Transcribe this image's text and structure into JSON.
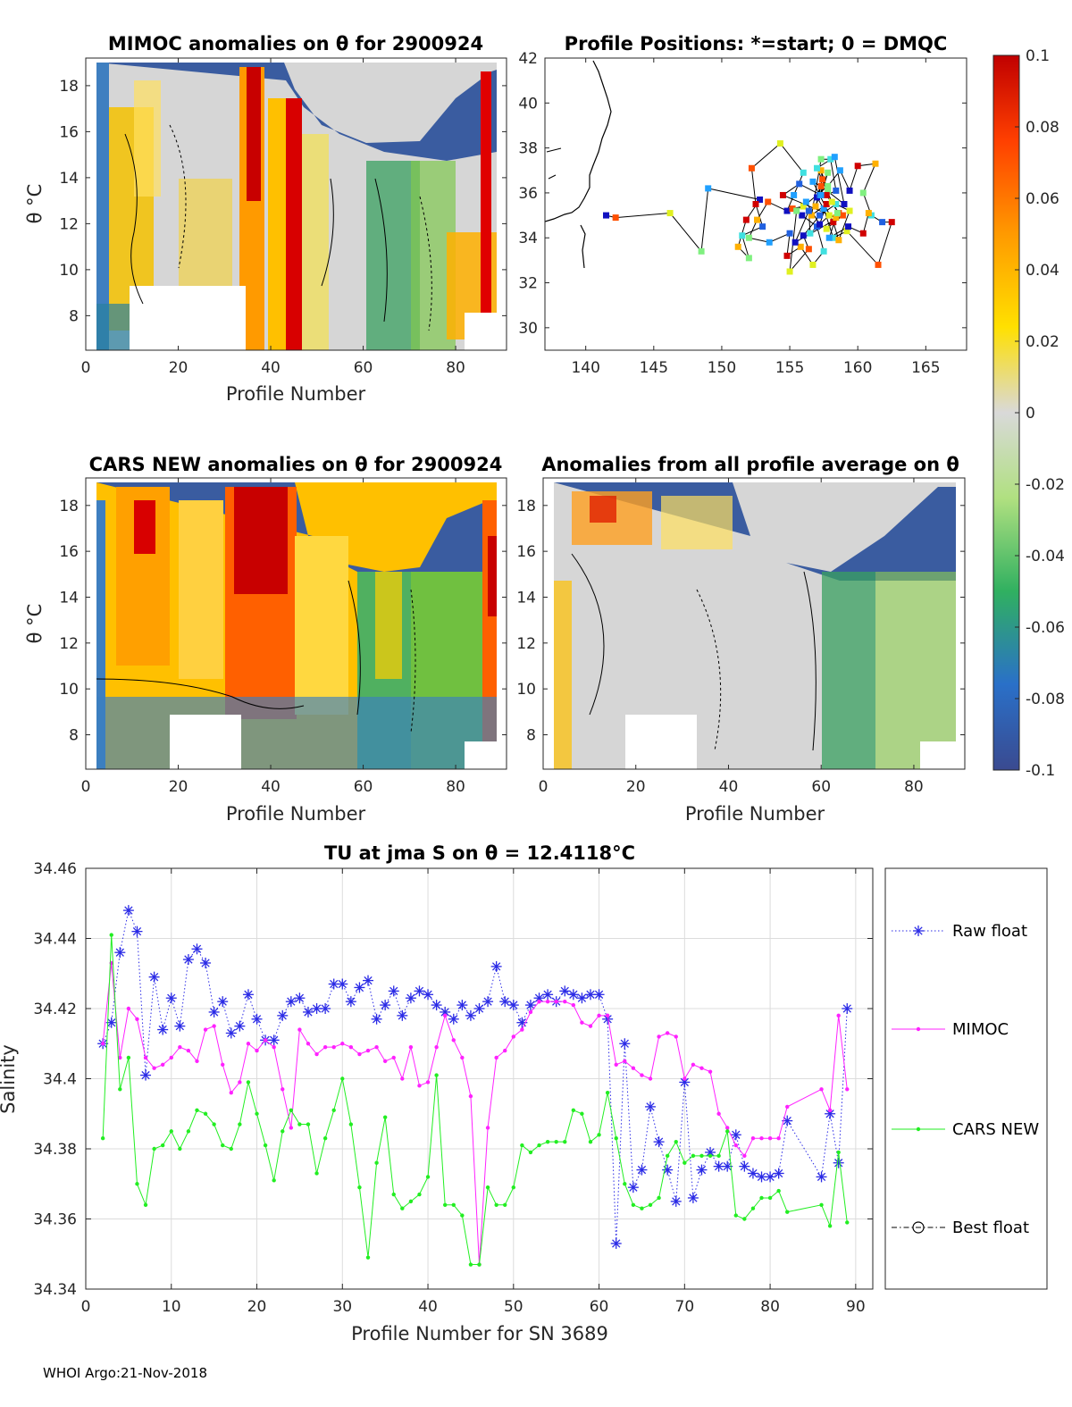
{
  "footer": "WHOI Argo:21-Nov-2018",
  "colors": {
    "raw_float": "#2b2be6",
    "mimoc": "#ff22ff",
    "cars_new": "#22ee22",
    "grid": "#dcdcdc",
    "land": "#000000"
  },
  "colorbar": {
    "tick_labels": [
      "0.1",
      "0.08",
      "0.06",
      "0.04",
      "0.02",
      "0",
      "-0.02",
      "-0.04",
      "-0.06",
      "-0.08",
      "-0.1"
    ],
    "range": [
      -0.1,
      0.1
    ]
  },
  "panels": [
    {
      "id": "mimoc",
      "title": "MIMOC anomalies on θ  for 2900924",
      "xlabel": "Profile Number",
      "ylabel": "θ °C",
      "xlim": [
        0,
        91
      ],
      "ylim": [
        6.5,
        19.2
      ],
      "xticks": [
        "0",
        "20",
        "40",
        "60",
        "80"
      ],
      "yticks": [
        "8",
        "10",
        "12",
        "14",
        "16",
        "18"
      ]
    },
    {
      "id": "cars",
      "title": "CARS NEW anomalies on θ for 2900924",
      "xlabel": "Profile Number",
      "ylabel": "θ °C",
      "xlim": [
        0,
        91
      ],
      "ylim": [
        6.5,
        19.2
      ],
      "xticks": [
        "0",
        "20",
        "40",
        "60",
        "80"
      ],
      "yticks": [
        "8",
        "10",
        "12",
        "14",
        "16",
        "18"
      ]
    },
    {
      "id": "allavg",
      "title": "Anomalies from all profile average on θ",
      "xlabel": "Profile Number",
      "ylabel": "",
      "xlim": [
        0,
        91
      ],
      "ylim": [
        6.5,
        19.2
      ],
      "xticks": [
        "0",
        "20",
        "40",
        "60",
        "80"
      ],
      "yticks": [
        "8",
        "10",
        "12",
        "14",
        "16",
        "18"
      ]
    }
  ],
  "map": {
    "title": "Profile Positions: *=start; 0 = DMQC",
    "xticks": [
      "140",
      "145",
      "150",
      "155",
      "160",
      "165"
    ],
    "yticks": [
      "30",
      "32",
      "34",
      "36",
      "38",
      "40",
      "42"
    ],
    "xlim": [
      137,
      168
    ],
    "ylim": [
      29,
      42
    ],
    "track": [
      [
        141.5,
        35.0
      ],
      [
        142.2,
        34.9
      ],
      [
        146.2,
        35.1
      ],
      [
        148.5,
        33.4
      ],
      [
        149.0,
        36.2
      ],
      [
        152.8,
        35.7
      ],
      [
        151.8,
        34.8
      ],
      [
        151.2,
        33.6
      ],
      [
        152.0,
        33.1
      ],
      [
        151.5,
        34.1
      ],
      [
        153.0,
        34.5
      ],
      [
        152.5,
        35.5
      ],
      [
        152.2,
        37.1
      ],
      [
        154.3,
        38.2
      ],
      [
        156.0,
        36.9
      ],
      [
        155.3,
        35.9
      ],
      [
        154.8,
        35.2
      ],
      [
        153.4,
        35.6
      ],
      [
        152.6,
        34.8
      ],
      [
        152.0,
        34.0
      ],
      [
        153.5,
        33.8
      ],
      [
        155.0,
        34.2
      ],
      [
        154.8,
        33.2
      ],
      [
        155.8,
        33.6
      ],
      [
        156.7,
        32.8
      ],
      [
        157.5,
        33.4
      ],
      [
        157.0,
        34.5
      ],
      [
        155.9,
        35.0
      ],
      [
        155.2,
        35.3
      ],
      [
        156.0,
        35.4
      ],
      [
        157.8,
        36.3
      ],
      [
        158.7,
        37.0
      ],
      [
        159.4,
        36.1
      ],
      [
        160.0,
        37.2
      ],
      [
        161.3,
        37.3
      ],
      [
        160.4,
        36.0
      ],
      [
        161.0,
        35.0
      ],
      [
        161.8,
        34.7
      ],
      [
        162.5,
        34.7
      ],
      [
        161.5,
        32.8
      ],
      [
        159.2,
        34.3
      ],
      [
        158.2,
        34.0
      ],
      [
        157.5,
        35.3
      ],
      [
        157.0,
        35.8
      ],
      [
        157.4,
        36.6
      ],
      [
        157.3,
        37.0
      ],
      [
        157.8,
        36.1
      ],
      [
        156.7,
        36.5
      ],
      [
        157.2,
        35.9
      ],
      [
        158.2,
        34.7
      ],
      [
        158.6,
        33.9
      ],
      [
        159.4,
        35.2
      ],
      [
        158.4,
        35.5
      ],
      [
        157.2,
        35.0
      ],
      [
        156.0,
        34.1
      ],
      [
        156.4,
        33.5
      ],
      [
        155.0,
        32.5
      ],
      [
        155.5,
        35.2
      ],
      [
        156.2,
        35.6
      ],
      [
        157.2,
        34.6
      ],
      [
        157.7,
        35.5
      ],
      [
        156.6,
        35.0
      ],
      [
        157.3,
        37.5
      ],
      [
        158.0,
        37.5
      ],
      [
        158.4,
        36.1
      ],
      [
        157.7,
        35.9
      ],
      [
        158.6,
        35.1
      ],
      [
        158.1,
        35.6
      ],
      [
        157.0,
        37.1
      ],
      [
        158.3,
        37.6
      ],
      [
        159.0,
        35.5
      ],
      [
        157.3,
        36.3
      ],
      [
        156.9,
        35.4
      ],
      [
        157.8,
        36.9
      ],
      [
        157.3,
        35.9
      ],
      [
        155.7,
        36.4
      ],
      [
        154.5,
        35.9
      ],
      [
        158.4,
        34.9
      ],
      [
        157.9,
        35.0
      ],
      [
        156.5,
        34.2
      ],
      [
        156.4,
        35.2
      ],
      [
        155.4,
        33.8
      ],
      [
        158.9,
        35.0
      ],
      [
        157.7,
        34.4
      ],
      [
        158.5,
        35.1
      ],
      [
        157.9,
        34.0
      ],
      [
        159.3,
        34.5
      ],
      [
        160.4,
        34.2
      ],
      [
        160.8,
        35.1
      ]
    ]
  },
  "chart_data": {
    "type": "line",
    "title": "TU at jma S on θ = 12.4118°C",
    "xlabel": "Profile Number for SN 3689",
    "ylabel": "Salinity",
    "xlim": [
      0,
      92
    ],
    "ylim": [
      34.34,
      34.46
    ],
    "xticks": [
      "0",
      "10",
      "20",
      "30",
      "40",
      "50",
      "60",
      "70",
      "80",
      "90"
    ],
    "yticks": [
      "34.34",
      "34.36",
      "34.38",
      "34.4",
      "34.42",
      "34.44",
      "34.46"
    ],
    "legend_position": "right-outside",
    "series": [
      {
        "name": "Raw float",
        "style": "dotted-star",
        "x": [
          2,
          3,
          4,
          5,
          6,
          7,
          8,
          9,
          10,
          11,
          12,
          13,
          14,
          15,
          16,
          17,
          18,
          19,
          20,
          21,
          22,
          23,
          24,
          25,
          26,
          27,
          28,
          29,
          30,
          31,
          32,
          33,
          34,
          35,
          36,
          37,
          38,
          39,
          40,
          41,
          42,
          43,
          44,
          45,
          46,
          47,
          48,
          49,
          50,
          51,
          52,
          53,
          54,
          55,
          56,
          57,
          58,
          59,
          60,
          61,
          62,
          63,
          64,
          65,
          66,
          67,
          68,
          69,
          70,
          71,
          72,
          73,
          74,
          75,
          76,
          77,
          78,
          79,
          80,
          81,
          82,
          86,
          87,
          88,
          89
        ],
        "values": [
          34.41,
          34.416,
          34.436,
          34.448,
          34.442,
          34.401,
          34.429,
          34.414,
          34.423,
          34.415,
          34.434,
          34.437,
          34.433,
          34.419,
          34.422,
          34.413,
          34.415,
          34.424,
          34.417,
          34.411,
          34.411,
          34.418,
          34.422,
          34.423,
          34.419,
          34.42,
          34.42,
          34.427,
          34.427,
          34.422,
          34.426,
          34.428,
          34.417,
          34.421,
          34.425,
          34.418,
          34.423,
          34.425,
          34.424,
          34.421,
          34.419,
          34.417,
          34.421,
          34.418,
          34.42,
          34.422,
          34.432,
          34.422,
          34.421,
          34.416,
          34.421,
          34.423,
          34.424,
          34.422,
          34.425,
          34.424,
          34.423,
          34.424,
          34.424,
          34.417,
          34.353,
          34.41,
          34.369,
          34.374,
          34.392,
          34.382,
          34.374,
          34.365,
          34.399,
          34.366,
          34.374,
          34.379,
          34.375,
          34.375,
          34.384,
          34.375,
          34.373,
          34.372,
          34.372,
          34.373,
          34.388,
          34.372,
          34.39,
          34.376,
          34.42
        ]
      },
      {
        "name": "MIMOC",
        "style": "line-dot",
        "x": [
          2,
          3,
          4,
          5,
          6,
          7,
          8,
          9,
          10,
          11,
          12,
          13,
          14,
          15,
          16,
          17,
          18,
          19,
          20,
          21,
          22,
          23,
          24,
          25,
          26,
          27,
          28,
          29,
          30,
          31,
          32,
          33,
          34,
          35,
          36,
          37,
          38,
          39,
          40,
          41,
          42,
          43,
          44,
          45,
          46,
          47,
          48,
          49,
          50,
          51,
          52,
          53,
          54,
          55,
          56,
          57,
          58,
          59,
          60,
          61,
          62,
          63,
          64,
          65,
          66,
          67,
          68,
          69,
          70,
          71,
          72,
          73,
          74,
          75,
          76,
          77,
          78,
          79,
          80,
          81,
          82,
          86,
          87,
          88,
          89
        ],
        "values": [
          34.41,
          34.433,
          34.406,
          34.42,
          34.417,
          34.406,
          34.403,
          34.404,
          34.406,
          34.409,
          34.408,
          34.405,
          34.414,
          34.415,
          34.404,
          34.396,
          34.399,
          34.41,
          34.408,
          34.411,
          34.409,
          34.397,
          34.386,
          34.414,
          34.41,
          34.407,
          34.409,
          34.409,
          34.41,
          34.409,
          34.407,
          34.408,
          34.409,
          34.405,
          34.406,
          34.4,
          34.409,
          34.398,
          34.399,
          34.409,
          34.418,
          34.411,
          34.406,
          34.395,
          34.347,
          34.386,
          34.406,
          34.408,
          34.412,
          34.414,
          34.419,
          34.422,
          34.422,
          34.422,
          34.422,
          34.421,
          34.416,
          34.415,
          34.418,
          34.418,
          34.404,
          34.405,
          34.403,
          34.401,
          34.4,
          34.412,
          34.413,
          34.412,
          34.4,
          34.404,
          34.403,
          34.402,
          34.39,
          34.386,
          34.381,
          34.378,
          34.383,
          34.383,
          34.383,
          34.383,
          34.392,
          34.397,
          34.391,
          34.418,
          34.397
        ]
      },
      {
        "name": "CARS NEW",
        "style": "line-dot",
        "x": [
          2,
          3,
          4,
          5,
          6,
          7,
          8,
          9,
          10,
          11,
          12,
          13,
          14,
          15,
          16,
          17,
          18,
          19,
          20,
          21,
          22,
          23,
          24,
          25,
          26,
          27,
          28,
          29,
          30,
          31,
          32,
          33,
          34,
          35,
          36,
          37,
          38,
          39,
          40,
          41,
          42,
          43,
          44,
          45,
          46,
          47,
          48,
          49,
          50,
          51,
          52,
          53,
          54,
          55,
          56,
          57,
          58,
          59,
          60,
          61,
          62,
          63,
          64,
          65,
          66,
          67,
          68,
          69,
          70,
          71,
          72,
          73,
          74,
          75,
          76,
          77,
          78,
          79,
          80,
          81,
          82,
          86,
          87,
          88,
          89
        ],
        "values": [
          34.383,
          34.441,
          34.397,
          34.406,
          34.37,
          34.364,
          34.38,
          34.381,
          34.385,
          34.38,
          34.385,
          34.391,
          34.39,
          34.387,
          34.381,
          34.38,
          34.387,
          34.399,
          34.39,
          34.381,
          34.371,
          34.385,
          34.391,
          34.387,
          34.387,
          34.373,
          34.383,
          34.391,
          34.4,
          34.387,
          34.369,
          34.349,
          34.376,
          34.389,
          34.367,
          34.363,
          34.365,
          34.367,
          34.372,
          34.401,
          34.364,
          34.364,
          34.361,
          34.347,
          34.347,
          34.369,
          34.364,
          34.364,
          34.369,
          34.381,
          34.379,
          34.381,
          34.382,
          34.382,
          34.382,
          34.391,
          34.39,
          34.382,
          34.384,
          34.396,
          34.383,
          34.37,
          34.364,
          34.363,
          34.364,
          34.366,
          34.378,
          34.382,
          34.376,
          34.378,
          34.378,
          34.378,
          34.378,
          34.385,
          34.361,
          34.36,
          34.363,
          34.366,
          34.366,
          34.368,
          34.362,
          34.364,
          34.358,
          34.379,
          34.359
        ]
      },
      {
        "name": "Best float",
        "style": "dashdot-circle",
        "x": [],
        "values": []
      }
    ]
  }
}
